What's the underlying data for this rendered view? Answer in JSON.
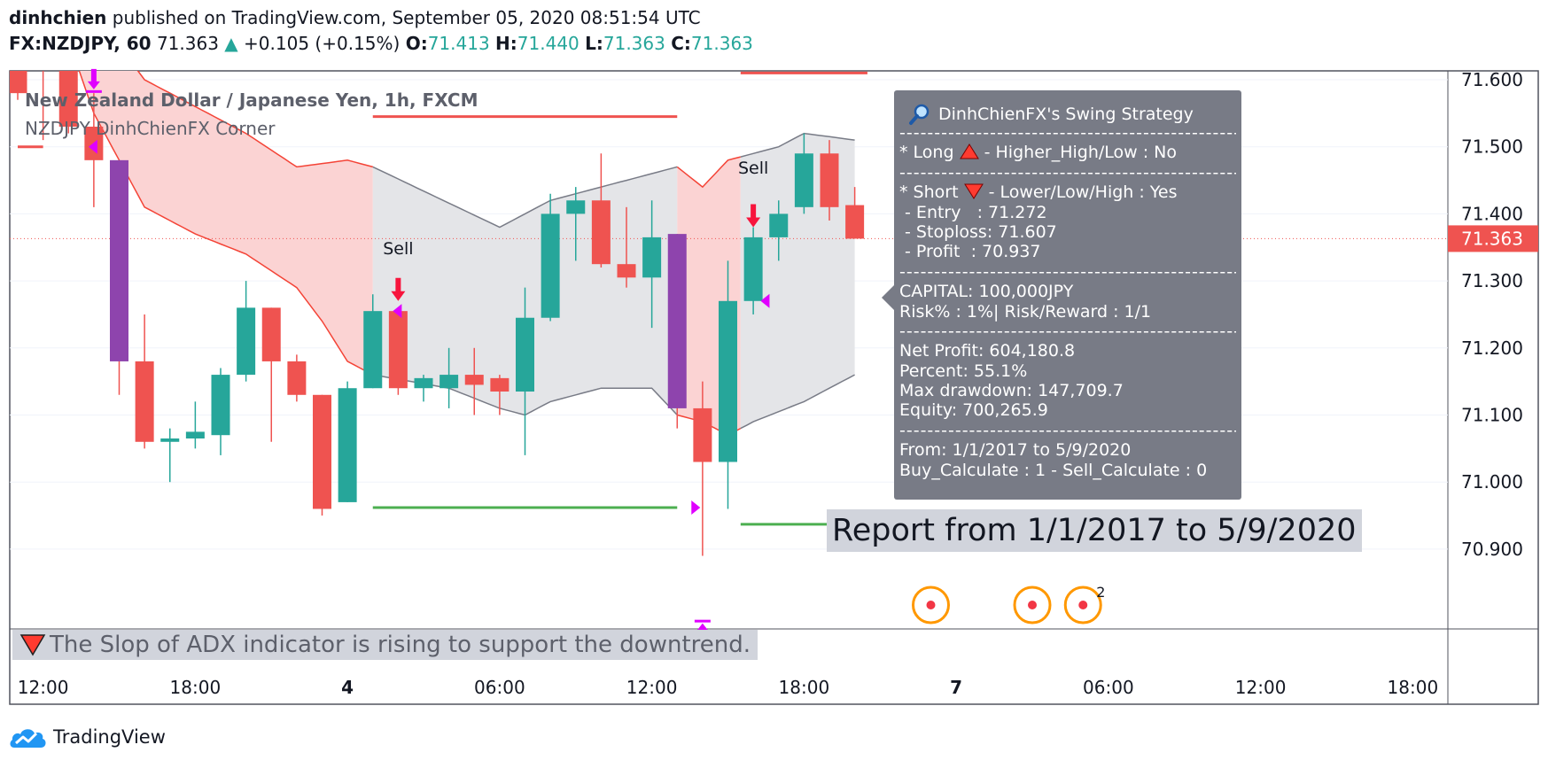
{
  "header": {
    "author": "dinhchien",
    "published": "published on TradingView.com, September 05, 2020 08:51:54 UTC",
    "symbol": "FX:NZDJPY, 60",
    "last": "71.363",
    "change_arrow": "▲",
    "change": "+0.105 (+0.15%)",
    "o_label": "O:",
    "o": "71.413",
    "h_label": "H:",
    "h": "71.440",
    "l_label": "L:",
    "l": "71.363",
    "c_label": "C:",
    "c": "71.363"
  },
  "legend": {
    "title": "New Zealand Dollar / Japanese Yen, 1h, FXCM",
    "indicator": "NZDJPY DinhChienFX Corner"
  },
  "info_panel": {
    "title": "DinhChienFX's Swing Strategy",
    "icon": "magnifier-icon",
    "divider": "--------------------------------------------------------",
    "long_line": "* Long",
    "long_rest": "- Higher_High/Low : No",
    "short_line": "* Short",
    "short_rest": "- Lower/Low/High : Yes",
    "entry": " - Entry   : 71.272",
    "stoploss": " - Stoploss: 71.607",
    "profit": " - Profit  : 70.937",
    "capital": "CAPITAL: 100,000JPY",
    "risk": "Risk% : 1%| Risk/Reward : 1/1",
    "net_profit": "Net Profit: 604,180.8",
    "percent": "Percent: 55.1%",
    "max_drawdown": "Max drawdown: 147,709.7",
    "equity": "Equity: 700,265.9",
    "from": "From: 1/1/2017 to 5/9/2020",
    "calc": "Buy_Calculate : 1 - Sell_Calculate : 0"
  },
  "report_label": "Report from 1/1/2017 to 5/9/2020",
  "adx_message": "The Slop of ADX indicator is rising to support the downtrend.",
  "branding": "TradingView",
  "colors": {
    "up": "#26a69a",
    "down": "#ef5350",
    "special": "#8e44ad",
    "cloud_red": "#fbd3d3",
    "cloud_gray": "#e4e5e8",
    "marker": "#e000ff",
    "price_label": "#ef5350",
    "signal_arrow": "#f7143c",
    "tp_line": "#4caf50",
    "sl_line": "#ef5350"
  },
  "chart_data": {
    "type": "candlestick",
    "y_ticks": [
      "71.600",
      "71.500",
      "71.400",
      "71.300",
      "71.200",
      "71.100",
      "71.000",
      "70.900"
    ],
    "ylim": [
      70.82,
      71.68
    ],
    "x_ticks": [
      {
        "label": "12:00",
        "i": 1
      },
      {
        "label": "18:00",
        "i": 7
      },
      {
        "label": "4",
        "i": 13
      },
      {
        "label": "06:00",
        "i": 19
      },
      {
        "label": "12:00",
        "i": 25
      },
      {
        "label": "18:00",
        "i": 31
      },
      {
        "label": "7",
        "i": 37
      },
      {
        "label": "06:00",
        "i": 43
      },
      {
        "label": "12:00",
        "i": 49
      },
      {
        "label": "18:00",
        "i": 55
      }
    ],
    "last_price": "71.363",
    "candles": [
      {
        "i": 0,
        "o": 71.63,
        "h": 71.72,
        "c": 71.58,
        "l": 71.57
      },
      {
        "i": 1,
        "o": 71.66,
        "h": 71.68,
        "c": 71.62,
        "l": 71.51
      },
      {
        "i": 2,
        "o": 71.63,
        "h": 71.67,
        "c": 71.53,
        "l": 71.52
      },
      {
        "i": 3,
        "o": 71.53,
        "h": 71.58,
        "c": 71.48,
        "l": 71.41
      },
      {
        "i": 4,
        "o": 71.48,
        "h": 71.48,
        "c": 71.18,
        "l": 71.13,
        "purple": true
      },
      {
        "i": 5,
        "o": 71.18,
        "h": 71.25,
        "c": 71.06,
        "l": 71.05
      },
      {
        "i": 6,
        "o": 71.06,
        "h": 71.08,
        "c": 71.065,
        "l": 71.0
      },
      {
        "i": 7,
        "o": 71.065,
        "h": 71.12,
        "c": 71.075,
        "l": 71.05
      },
      {
        "i": 8,
        "o": 71.07,
        "h": 71.17,
        "c": 71.16,
        "l": 71.04
      },
      {
        "i": 9,
        "o": 71.16,
        "h": 71.3,
        "c": 71.26,
        "l": 71.15
      },
      {
        "i": 10,
        "o": 71.26,
        "h": 71.26,
        "c": 71.18,
        "l": 71.06
      },
      {
        "i": 11,
        "o": 71.18,
        "h": 71.19,
        "c": 71.13,
        "l": 71.12
      },
      {
        "i": 12,
        "o": 71.13,
        "h": 71.13,
        "c": 70.96,
        "l": 70.95
      },
      {
        "i": 13,
        "o": 70.97,
        "h": 71.15,
        "c": 71.14,
        "l": 70.97
      },
      {
        "i": 14,
        "o": 71.14,
        "h": 71.28,
        "c": 71.255,
        "l": 71.14
      },
      {
        "i": 15,
        "o": 71.255,
        "h": 71.26,
        "c": 71.14,
        "l": 71.13
      },
      {
        "i": 16,
        "o": 71.14,
        "h": 71.16,
        "c": 71.155,
        "l": 71.12
      },
      {
        "i": 17,
        "o": 71.14,
        "h": 71.2,
        "c": 71.16,
        "l": 71.11
      },
      {
        "i": 18,
        "o": 71.16,
        "h": 71.2,
        "c": 71.145,
        "l": 71.1
      },
      {
        "i": 19,
        "o": 71.155,
        "h": 71.16,
        "c": 71.135,
        "l": 71.1
      },
      {
        "i": 20,
        "o": 71.135,
        "h": 71.29,
        "c": 71.245,
        "l": 71.04
      },
      {
        "i": 21,
        "o": 71.245,
        "h": 71.43,
        "c": 71.4,
        "l": 71.24
      },
      {
        "i": 22,
        "o": 71.4,
        "h": 71.44,
        "c": 71.42,
        "l": 71.33
      },
      {
        "i": 23,
        "o": 71.42,
        "h": 71.49,
        "c": 71.325,
        "l": 71.32
      },
      {
        "i": 24,
        "o": 71.325,
        "h": 71.41,
        "c": 71.305,
        "l": 71.29
      },
      {
        "i": 25,
        "o": 71.305,
        "h": 71.42,
        "c": 71.365,
        "l": 71.23
      },
      {
        "i": 26,
        "o": 71.37,
        "h": 71.37,
        "c": 71.11,
        "l": 71.08,
        "purple": true
      },
      {
        "i": 27,
        "o": 71.11,
        "h": 71.15,
        "c": 71.03,
        "l": 70.89
      },
      {
        "i": 28,
        "o": 71.03,
        "h": 71.33,
        "c": 71.27,
        "l": 70.96
      },
      {
        "i": 29,
        "o": 71.27,
        "h": 71.38,
        "c": 71.365,
        "l": 71.25
      },
      {
        "i": 30,
        "o": 71.365,
        "h": 71.42,
        "c": 71.4,
        "l": 71.33
      },
      {
        "i": 31,
        "o": 71.41,
        "h": 71.52,
        "c": 71.49,
        "l": 71.4
      },
      {
        "i": 32,
        "o": 71.49,
        "h": 71.51,
        "c": 71.41,
        "l": 71.39
      },
      {
        "i": 33,
        "o": 71.413,
        "h": 71.44,
        "c": 71.363,
        "l": 71.363
      }
    ],
    "cloud_top": [
      [
        0,
        71.72
      ],
      [
        2,
        71.72
      ],
      [
        3,
        71.7
      ],
      [
        5,
        71.6
      ],
      [
        7,
        71.56
      ],
      [
        9,
        71.52
      ],
      [
        11,
        71.47
      ],
      [
        13,
        71.48
      ],
      [
        14,
        71.47
      ],
      [
        19,
        71.38
      ],
      [
        21,
        71.42
      ],
      [
        23,
        71.44
      ],
      [
        25,
        71.46
      ],
      [
        26,
        71.47
      ],
      [
        27,
        71.44
      ],
      [
        28,
        71.48
      ],
      [
        30,
        71.5
      ],
      [
        31,
        71.52
      ],
      [
        33,
        71.51
      ]
    ],
    "cloud_bot": [
      [
        0,
        71.7
      ],
      [
        2,
        71.66
      ],
      [
        3,
        71.55
      ],
      [
        5,
        71.41
      ],
      [
        7,
        71.37
      ],
      [
        9,
        71.34
      ],
      [
        11,
        71.29
      ],
      [
        12,
        71.24
      ],
      [
        13,
        71.18
      ],
      [
        14,
        71.16
      ],
      [
        17,
        71.14
      ],
      [
        19,
        71.11
      ],
      [
        20,
        71.1
      ],
      [
        21,
        71.12
      ],
      [
        23,
        71.14
      ],
      [
        25,
        71.14
      ],
      [
        26,
        71.1
      ],
      [
        27,
        71.09
      ],
      [
        28,
        71.07
      ],
      [
        29,
        71.09
      ],
      [
        31,
        71.12
      ],
      [
        33,
        71.16
      ]
    ],
    "cloud_segments": [
      {
        "from": 0,
        "to": 14,
        "color": "red"
      },
      {
        "from": 14,
        "to": 26,
        "color": "gray"
      },
      {
        "from": 26,
        "to": 28.5,
        "color": "red"
      },
      {
        "from": 28.5,
        "to": 33,
        "color": "gray"
      }
    ],
    "stop_lines": [
      {
        "x0": 0,
        "x1": 1,
        "y": 71.5
      },
      {
        "x0": 14,
        "x1": 26,
        "y": 71.545
      },
      {
        "x0": 28.5,
        "x1": 33.5,
        "y": 71.61
      }
    ],
    "target_lines": [
      {
        "x0": 14,
        "x1": 26,
        "y": 70.962
      },
      {
        "x0": 28.5,
        "x1": 33.5,
        "y": 70.937
      }
    ],
    "sell_labels": [
      {
        "i": 15,
        "y": 71.34,
        "text": "Sell"
      },
      {
        "i": 29,
        "y": 71.46,
        "text": "Sell"
      }
    ],
    "sell_arrows": [
      {
        "i": 15,
        "y": 71.27
      },
      {
        "i": 29,
        "y": 71.38
      }
    ],
    "markers": [
      {
        "i": 3,
        "y": 71.5,
        "dir": "left"
      },
      {
        "i": 15,
        "y": 71.255,
        "dir": "left"
      },
      {
        "i": 26.7,
        "y": 70.962,
        "dir": "right"
      },
      {
        "i": 29.5,
        "y": 71.27,
        "dir": "left"
      }
    ],
    "vertical_arrows": [
      {
        "i": 3,
        "dir": "down",
        "y": 71.62
      },
      {
        "i": 27,
        "dir": "up",
        "y": 70.755
      }
    ],
    "events": [
      {
        "i": 36,
        "badge": ""
      },
      {
        "i": 40,
        "badge": ""
      },
      {
        "i": 42,
        "badge": "2"
      }
    ]
  }
}
